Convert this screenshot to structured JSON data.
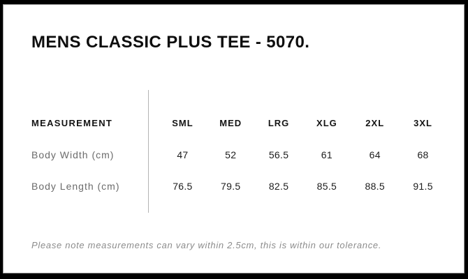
{
  "window": {
    "title": "MENS CLASSIC PLUS TEE - 5070."
  },
  "size_chart": {
    "measurement_header": "MEASUREMENT",
    "size_headers": [
      "SML",
      "MED",
      "LRG",
      "XLG",
      "2XL",
      "3XL"
    ],
    "rows": [
      {
        "label": "Body Width (cm)",
        "values": [
          "47",
          "52",
          "56.5",
          "61",
          "64",
          "68"
        ]
      },
      {
        "label": "Body Length (cm)",
        "values": [
          "76.5",
          "79.5",
          "82.5",
          "85.5",
          "88.5",
          "91.5"
        ]
      }
    ]
  },
  "footnote": {
    "text": "Please note measurements can vary within 2.5cm, this is within our tolerance."
  },
  "colors": {
    "frame": "#000000",
    "card_bg": "#ffffff",
    "title_text": "#0d0d0d",
    "header_text": "#141414",
    "row_label_text": "#6b6b6b",
    "value_text": "#1c1c1c",
    "divider": "#b4b4b4",
    "note_text": "#8c8c8c"
  }
}
